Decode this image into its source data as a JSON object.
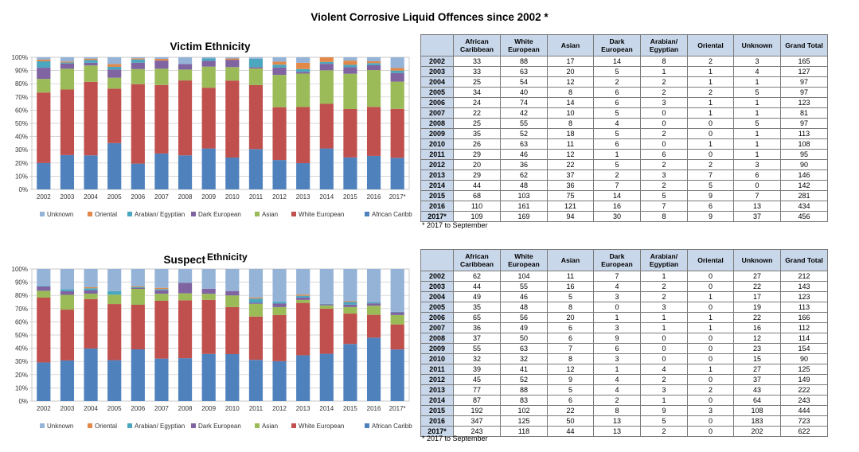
{
  "title": "Violent Corrosive Liquid Offences since 2002 *",
  "footnote": "* 2017 to September",
  "colors": {
    "Unknown": "#95b3d7",
    "Oriental": "#e2894a",
    "Arabian/ Egyptian": "#4aa7bf",
    "Dark European": "#8064a2",
    "Asian": "#9bbb59",
    "White European": "#c0504d",
    "African Caribbean": "#4f81bd"
  },
  "chart_data": [
    {
      "type": "bar",
      "stacked": "percent",
      "title": "Victim Ethnicity",
      "categories": [
        "2002",
        "2003",
        "2004",
        "2005",
        "2006",
        "2007",
        "2008",
        "2009",
        "2010",
        "2011",
        "2012",
        "2013",
        "2014",
        "2015",
        "2016",
        "2017*"
      ],
      "yticks": [
        "0%",
        "10%",
        "20%",
        "30%",
        "40%",
        "50%",
        "60%",
        "70%",
        "80%",
        "90%",
        "100%"
      ],
      "ylim": [
        0,
        100
      ],
      "legend": [
        "Unknown",
        "Oriental",
        "Arabian/ Egyptian",
        "Dark European",
        "Asian",
        "White European",
        "African Caribbean"
      ],
      "series": [
        {
          "name": "African Caribbean",
          "values": [
            33,
            33,
            25,
            34,
            24,
            22,
            25,
            35,
            26,
            29,
            20,
            29,
            44,
            68,
            110,
            109
          ]
        },
        {
          "name": "White European",
          "values": [
            88,
            63,
            54,
            40,
            74,
            42,
            55,
            52,
            63,
            46,
            36,
            62,
            48,
            103,
            161,
            169
          ]
        },
        {
          "name": "Asian",
          "values": [
            17,
            20,
            12,
            8,
            14,
            10,
            8,
            18,
            11,
            12,
            22,
            37,
            36,
            75,
            121,
            94
          ]
        },
        {
          "name": "Dark European",
          "values": [
            14,
            5,
            2,
            6,
            6,
            5,
            4,
            5,
            6,
            1,
            5,
            2,
            7,
            14,
            16,
            30
          ]
        },
        {
          "name": "Arabian/ Egyptian",
          "values": [
            8,
            1,
            2,
            2,
            3,
            0,
            0,
            2,
            0,
            6,
            2,
            3,
            2,
            5,
            7,
            8
          ]
        },
        {
          "name": "Oriental",
          "values": [
            2,
            1,
            1,
            2,
            1,
            1,
            0,
            0,
            1,
            0,
            2,
            7,
            5,
            9,
            6,
            9
          ]
        },
        {
          "name": "Unknown",
          "values": [
            3,
            4,
            1,
            5,
            1,
            1,
            5,
            1,
            1,
            1,
            3,
            6,
            0,
            7,
            13,
            37
          ]
        }
      ]
    },
    {
      "type": "bar",
      "stacked": "percent",
      "title": "Suspect Ethnicity",
      "title_parts": [
        "Suspect",
        "Ethnicity"
      ],
      "categories": [
        "2002",
        "2003",
        "2004",
        "2005",
        "2006",
        "2007",
        "2008",
        "2009",
        "2010",
        "2011",
        "2012",
        "2013",
        "2014",
        "2015",
        "2016",
        "2017*"
      ],
      "yticks": [
        "0%",
        "10%",
        "20%",
        "30%",
        "40%",
        "50%",
        "60%",
        "70%",
        "80%",
        "90%",
        "100%"
      ],
      "ylim": [
        0,
        100
      ],
      "legend": [
        "Unknown",
        "Oriental",
        "Arabian/ Egyptian",
        "Dark European",
        "Asian",
        "White European",
        "African Caribbean"
      ],
      "series": [
        {
          "name": "African Caribbean",
          "values": [
            62,
            44,
            49,
            35,
            65,
            36,
            37,
            55,
            32,
            39,
            45,
            77,
            87,
            192,
            347,
            243
          ]
        },
        {
          "name": "White European",
          "values": [
            104,
            55,
            46,
            48,
            56,
            49,
            50,
            63,
            32,
            41,
            52,
            88,
            83,
            102,
            125,
            118
          ]
        },
        {
          "name": "Asian",
          "values": [
            11,
            16,
            5,
            8,
            20,
            6,
            6,
            7,
            8,
            12,
            9,
            5,
            6,
            22,
            50,
            44
          ]
        },
        {
          "name": "Dark European",
          "values": [
            7,
            4,
            3,
            0,
            1,
            3,
            9,
            6,
            3,
            1,
            4,
            4,
            2,
            8,
            13,
            13
          ]
        },
        {
          "name": "Arabian/ Egyptian",
          "values": [
            1,
            2,
            2,
            3,
            1,
            1,
            0,
            0,
            0,
            4,
            2,
            3,
            1,
            9,
            5,
            2
          ]
        },
        {
          "name": "Oriental",
          "values": [
            0,
            0,
            1,
            0,
            1,
            1,
            0,
            0,
            0,
            1,
            0,
            2,
            0,
            3,
            0,
            0
          ]
        },
        {
          "name": "Unknown",
          "values": [
            27,
            22,
            17,
            19,
            22,
            16,
            12,
            23,
            15,
            27,
            37,
            43,
            64,
            108,
            183,
            202
          ]
        }
      ]
    }
  ],
  "tables": [
    {
      "name": "victim",
      "headers": [
        "",
        "African Caribbean",
        "White European",
        "Asian",
        "Dark European",
        "Arabian/ Egyptian",
        "Oriental",
        "Unknown",
        "Grand Total"
      ],
      "rows": [
        [
          "2002",
          "33",
          "88",
          "17",
          "14",
          "8",
          "2",
          "3",
          "165"
        ],
        [
          "2003",
          "33",
          "63",
          "20",
          "5",
          "1",
          "1",
          "4",
          "127"
        ],
        [
          "2004",
          "25",
          "54",
          "12",
          "2",
          "2",
          "1",
          "1",
          "97"
        ],
        [
          "2005",
          "34",
          "40",
          "8",
          "6",
          "2",
          "2",
          "5",
          "97"
        ],
        [
          "2006",
          "24",
          "74",
          "14",
          "6",
          "3",
          "1",
          "1",
          "123"
        ],
        [
          "2007",
          "22",
          "42",
          "10",
          "5",
          "0",
          "1",
          "1",
          "81"
        ],
        [
          "2008",
          "25",
          "55",
          "8",
          "4",
          "0",
          "0",
          "5",
          "97"
        ],
        [
          "2009",
          "35",
          "52",
          "18",
          "5",
          "2",
          "0",
          "1",
          "113"
        ],
        [
          "2010",
          "26",
          "63",
          "11",
          "6",
          "0",
          "1",
          "1",
          "108"
        ],
        [
          "2011",
          "29",
          "46",
          "12",
          "1",
          "6",
          "0",
          "1",
          "95"
        ],
        [
          "2012",
          "20",
          "36",
          "22",
          "5",
          "2",
          "2",
          "3",
          "90"
        ],
        [
          "2013",
          "29",
          "62",
          "37",
          "2",
          "3",
          "7",
          "6",
          "146"
        ],
        [
          "2014",
          "44",
          "48",
          "36",
          "7",
          "2",
          "5",
          "0",
          "142"
        ],
        [
          "2015",
          "68",
          "103",
          "75",
          "14",
          "5",
          "9",
          "7",
          "281"
        ],
        [
          "2016",
          "110",
          "161",
          "121",
          "16",
          "7",
          "6",
          "13",
          "434"
        ],
        [
          "2017*",
          "109",
          "169",
          "94",
          "30",
          "8",
          "9",
          "37",
          "456"
        ]
      ]
    },
    {
      "name": "suspect",
      "headers": [
        "",
        "African Caribbean",
        "White European",
        "Asian",
        "Dark European",
        "Arabian/ Egyptian",
        "Oriental",
        "Unknown",
        "Grand Total"
      ],
      "rows": [
        [
          "2002",
          "62",
          "104",
          "11",
          "7",
          "1",
          "0",
          "27",
          "212"
        ],
        [
          "2003",
          "44",
          "55",
          "16",
          "4",
          "2",
          "0",
          "22",
          "143"
        ],
        [
          "2004",
          "49",
          "46",
          "5",
          "3",
          "2",
          "1",
          "17",
          "123"
        ],
        [
          "2005",
          "35",
          "48",
          "8",
          "0",
          "3",
          "0",
          "19",
          "113"
        ],
        [
          "2006",
          "65",
          "56",
          "20",
          "1",
          "1",
          "1",
          "22",
          "166"
        ],
        [
          "2007",
          "36",
          "49",
          "6",
          "3",
          "1",
          "1",
          "16",
          "112"
        ],
        [
          "2008",
          "37",
          "50",
          "6",
          "9",
          "0",
          "0",
          "12",
          "114"
        ],
        [
          "2009",
          "55",
          "63",
          "7",
          "6",
          "0",
          "0",
          "23",
          "154"
        ],
        [
          "2010",
          "32",
          "32",
          "8",
          "3",
          "0",
          "0",
          "15",
          "90"
        ],
        [
          "2011",
          "39",
          "41",
          "12",
          "1",
          "4",
          "1",
          "27",
          "125"
        ],
        [
          "2012",
          "45",
          "52",
          "9",
          "4",
          "2",
          "0",
          "37",
          "149"
        ],
        [
          "2013",
          "77",
          "88",
          "5",
          "4",
          "3",
          "2",
          "43",
          "222"
        ],
        [
          "2014",
          "87",
          "83",
          "6",
          "2",
          "1",
          "0",
          "64",
          "243"
        ],
        [
          "2015",
          "192",
          "102",
          "22",
          "8",
          "9",
          "3",
          "108",
          "444"
        ],
        [
          "2016",
          "347",
          "125",
          "50",
          "13",
          "5",
          "0",
          "183",
          "723"
        ],
        [
          "2017*",
          "243",
          "118",
          "44",
          "13",
          "2",
          "0",
          "202",
          "622"
        ]
      ]
    }
  ]
}
